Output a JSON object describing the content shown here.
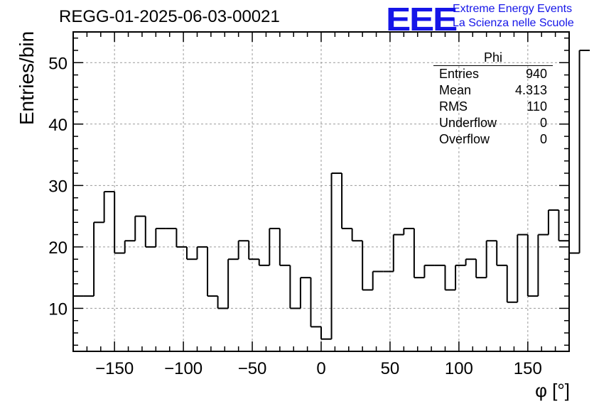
{
  "title": "REGG-01-2025-06-03-00021",
  "logo": {
    "mark": "EEE",
    "line1": "Extreme Energy Events",
    "line2": "La Scienza nelle Scuole",
    "color": "#1515e8"
  },
  "stats": {
    "name": "Phi",
    "rows": [
      {
        "label": "Entries",
        "value": "940"
      },
      {
        "label": "Mean",
        "value": "4.313"
      },
      {
        "label": "RMS",
        "value": "110"
      },
      {
        "label": "Underflow",
        "value": "0"
      },
      {
        "label": "Overflow",
        "value": "0"
      }
    ]
  },
  "chart_data": {
    "type": "bar",
    "style": "step-histogram",
    "title": "REGG-01-2025-06-03-00021",
    "xlabel": "φ [°]",
    "ylabel": "Entries/bin",
    "xlim": [
      -180,
      180
    ],
    "ylim": [
      3,
      55
    ],
    "grid": true,
    "bin_width": 7.5,
    "bin_start": -180,
    "values": [
      12,
      12,
      24,
      29,
      19,
      21,
      25,
      20,
      23,
      23,
      20,
      18,
      20,
      12,
      10,
      18,
      21,
      18,
      17,
      23,
      17,
      10,
      15,
      7,
      5,
      32,
      23,
      21,
      13,
      16,
      16,
      22,
      23,
      15,
      17,
      17,
      13,
      17,
      18,
      15,
      21,
      17,
      11,
      22,
      12,
      22,
      26,
      21,
      19,
      52
    ],
    "xticks": [
      -150,
      -100,
      -50,
      0,
      50,
      100,
      150
    ],
    "xtick_labels": [
      "−150",
      "−100",
      "−50",
      "0",
      "50",
      "100",
      "150"
    ],
    "yticks": [
      10,
      20,
      30,
      40,
      50
    ],
    "ytick_labels": [
      "10",
      "20",
      "30",
      "40",
      "50"
    ]
  }
}
